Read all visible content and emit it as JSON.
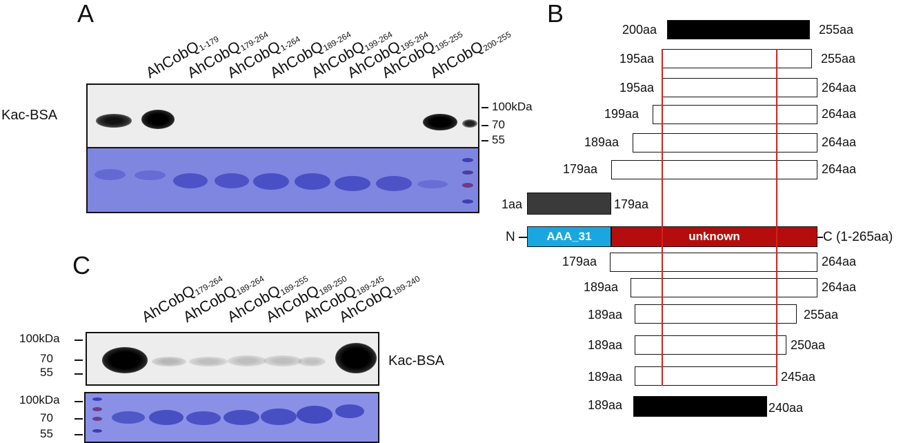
{
  "panel_a": {
    "letter": "A",
    "lane_labels": [
      {
        "base": "AhCobQ",
        "sub": "1-179"
      },
      {
        "base": "AhCobQ",
        "sub": "179-264"
      },
      {
        "base": "AhCobQ",
        "sub": "1-264"
      },
      {
        "base": "AhCobQ",
        "sub": "189-264"
      },
      {
        "base": "AhCobQ",
        "sub": "199-264"
      },
      {
        "base": "AhCobQ",
        "sub": "195-264"
      },
      {
        "base": "AhCobQ",
        "sub": "195-255"
      },
      {
        "base": "AhCobQ",
        "sub": "200-255"
      }
    ],
    "blot_label": "Kac-BSA",
    "markers": [
      "100kDa",
      "70",
      "55"
    ]
  },
  "panel_b": {
    "letter": "B",
    "constructs_top": [
      {
        "start": "200aa",
        "end": "255aa"
      },
      {
        "start": "195aa",
        "end": "255aa"
      },
      {
        "start": "195aa",
        "end": "264aa"
      },
      {
        "start": "199aa",
        "end": "264aa"
      },
      {
        "start": "189aa",
        "end": "264aa"
      },
      {
        "start": "179aa",
        "end": "264aa"
      },
      {
        "start": "1aa",
        "end": "179aa"
      }
    ],
    "domain": {
      "n_label": "N",
      "domain1": "AAA_31",
      "domain2": "unknown",
      "c_label": "C (1-265aa)",
      "colors": {
        "domain1": "#1aa7e0",
        "domain2": "#b50d0d"
      }
    },
    "constructs_bottom": [
      {
        "start": "179aa",
        "end": "264aa"
      },
      {
        "start": "189aa",
        "end": "264aa"
      },
      {
        "start": "189aa",
        "end": "255aa"
      },
      {
        "start": "189aa",
        "end": "250aa"
      },
      {
        "start": "189aa",
        "end": "245aa"
      },
      {
        "start": "189aa",
        "end": "240aa"
      }
    ]
  },
  "panel_c": {
    "letter": "C",
    "lane_labels": [
      {
        "base": "AhCobQ",
        "sub": "179-264"
      },
      {
        "base": "AhCobQ",
        "sub": "189-264"
      },
      {
        "base": "AhCobQ",
        "sub": "189-255"
      },
      {
        "base": "AhCobQ",
        "sub": "189-250"
      },
      {
        "base": "AhCobQ",
        "sub": "189-245"
      },
      {
        "base": "AhCobQ",
        "sub": "189-240"
      }
    ],
    "blot_label": "Kac-BSA",
    "markers_top": [
      "100kDa",
      "70",
      "55"
    ],
    "markers_bottom": [
      "100kDa",
      "70",
      "55"
    ]
  }
}
